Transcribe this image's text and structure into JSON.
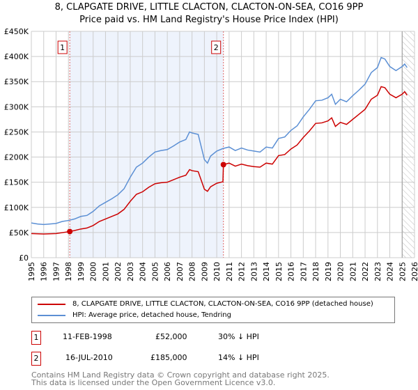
{
  "title": "8, CLAPGATE DRIVE, LITTLE CLACTON, CLACTON-ON-SEA, CO16 9PP",
  "subtitle": "Price paid vs. HM Land Registry's House Price Index (HPI)",
  "colors": {
    "red": "#cc0000",
    "blue": "#5b8fd4",
    "shade": "#eef3fc"
  },
  "chart_data": {
    "type": "line",
    "xlim": [
      1995,
      2026
    ],
    "ylim": [
      0,
      450000
    ],
    "yticks": [
      {
        "v": 0,
        "label": "£0"
      },
      {
        "v": 50000,
        "label": "£50K"
      },
      {
        "v": 100000,
        "label": "£100K"
      },
      {
        "v": 150000,
        "label": "£150K"
      },
      {
        "v": 200000,
        "label": "£200K"
      },
      {
        "v": 250000,
        "label": "£250K"
      },
      {
        "v": 300000,
        "label": "£300K"
      },
      {
        "v": 350000,
        "label": "£350K"
      },
      {
        "v": 400000,
        "label": "£400K"
      },
      {
        "v": 450000,
        "label": "£450K"
      }
    ],
    "xticks": [
      "1995",
      "1996",
      "1997",
      "1998",
      "1999",
      "2000",
      "2001",
      "2002",
      "2003",
      "2004",
      "2005",
      "2006",
      "2007",
      "2008",
      "2009",
      "2010",
      "2011",
      "2012",
      "2013",
      "2014",
      "2015",
      "2016",
      "2017",
      "2018",
      "2019",
      "2020",
      "2021",
      "2022",
      "2023",
      "2024",
      "2025",
      "2026"
    ],
    "shaded_range": [
      1998.11,
      2010.54
    ],
    "forecast_from": 2025.0,
    "markers": [
      {
        "label": "1",
        "x": 1998.11,
        "y": 52000
      },
      {
        "label": "2",
        "x": 2010.54,
        "y": 185000
      }
    ],
    "series": [
      {
        "name": "8, CLAPGATE DRIVE, LITTLE CLACTON, CLACTON-ON-SEA, CO16 9PP (detached house)",
        "color": "#cc0000",
        "x": [
          1995,
          1996,
          1997,
          1998.11,
          1998.5,
          1999,
          1999.5,
          2000,
          2000.5,
          2001,
          2001.5,
          2002,
          2002.5,
          2003,
          2003.5,
          2004,
          2004.5,
          2005,
          2005.5,
          2006,
          2006.5,
          2007,
          2007.5,
          2007.8,
          2008,
          2008.5,
          2009,
          2009.25,
          2009.5,
          2010,
          2010.5,
          2010.54,
          2011,
          2011.5,
          2012,
          2012.5,
          2013,
          2013.5,
          2014,
          2014.5,
          2015,
          2015.5,
          2016,
          2016.5,
          2017,
          2017.5,
          2018,
          2018.5,
          2019,
          2019.3,
          2019.6,
          2020,
          2020.5,
          2021,
          2021.5,
          2022,
          2022.5,
          2023,
          2023.3,
          2023.6,
          2024,
          2024.5,
          2025,
          2025.2,
          2025.4
        ],
        "y": [
          48000,
          47000,
          48000,
          52000,
          54000,
          57000,
          59000,
          64000,
          72000,
          77000,
          82000,
          87000,
          96000,
          112000,
          126000,
          131000,
          140000,
          147000,
          149000,
          150000,
          155000,
          160000,
          164000,
          175000,
          173000,
          171000,
          136000,
          132000,
          141000,
          148000,
          151000,
          185000,
          188000,
          182000,
          186000,
          183000,
          181000,
          180000,
          188000,
          186000,
          203000,
          205000,
          216000,
          224000,
          239000,
          252000,
          267000,
          268000,
          272000,
          278000,
          261000,
          269000,
          265000,
          275000,
          285000,
          295000,
          315000,
          323000,
          340000,
          338000,
          325000,
          318000,
          325000,
          330000,
          323000
        ]
      },
      {
        "name": "HPI: Average price, detached house, Tendring",
        "color": "#5b8fd4",
        "x": [
          1995,
          1995.5,
          1996,
          1997,
          1997.5,
          1998,
          1998.5,
          1999,
          1999.5,
          2000,
          2000.5,
          2001,
          2001.5,
          2002,
          2002.5,
          2003,
          2003.5,
          2004,
          2004.5,
          2005,
          2005.5,
          2006,
          2006.5,
          2007,
          2007.5,
          2007.8,
          2008,
          2008.5,
          2009,
          2009.25,
          2009.5,
          2010,
          2010.5,
          2011,
          2011.5,
          2012,
          2012.5,
          2013,
          2013.5,
          2014,
          2014.5,
          2015,
          2015.5,
          2016,
          2016.5,
          2017,
          2017.5,
          2018,
          2018.5,
          2019,
          2019.3,
          2019.6,
          2020,
          2020.5,
          2021,
          2021.5,
          2022,
          2022.5,
          2023,
          2023.3,
          2023.6,
          2024,
          2024.5,
          2025,
          2025.2,
          2025.4
        ],
        "y": [
          69000,
          67000,
          66000,
          68000,
          72000,
          74000,
          77000,
          82000,
          84000,
          92000,
          103000,
          110000,
          117000,
          125000,
          137000,
          160000,
          180000,
          188000,
          200000,
          210000,
          213000,
          215000,
          222000,
          230000,
          235000,
          250000,
          248000,
          245000,
          195000,
          188000,
          202000,
          212000,
          217000,
          220000,
          213000,
          218000,
          214000,
          212000,
          210000,
          220000,
          218000,
          237000,
          240000,
          253000,
          262000,
          280000,
          295000,
          312000,
          313000,
          318000,
          325000,
          305000,
          315000,
          310000,
          322000,
          333000,
          345000,
          368000,
          378000,
          398000,
          395000,
          380000,
          372000,
          380000,
          385000,
          378000
        ]
      }
    ]
  },
  "table": [
    {
      "n": "1",
      "date": "11-FEB-1998",
      "price": "£52,000",
      "hpi": "30% ↓ HPI"
    },
    {
      "n": "2",
      "date": "16-JUL-2010",
      "price": "£185,000",
      "hpi": "14% ↓ HPI"
    }
  ],
  "footer": [
    "Contains HM Land Registry data © Crown copyright and database right 2025.",
    "This data is licensed under the Open Government Licence v3.0."
  ]
}
